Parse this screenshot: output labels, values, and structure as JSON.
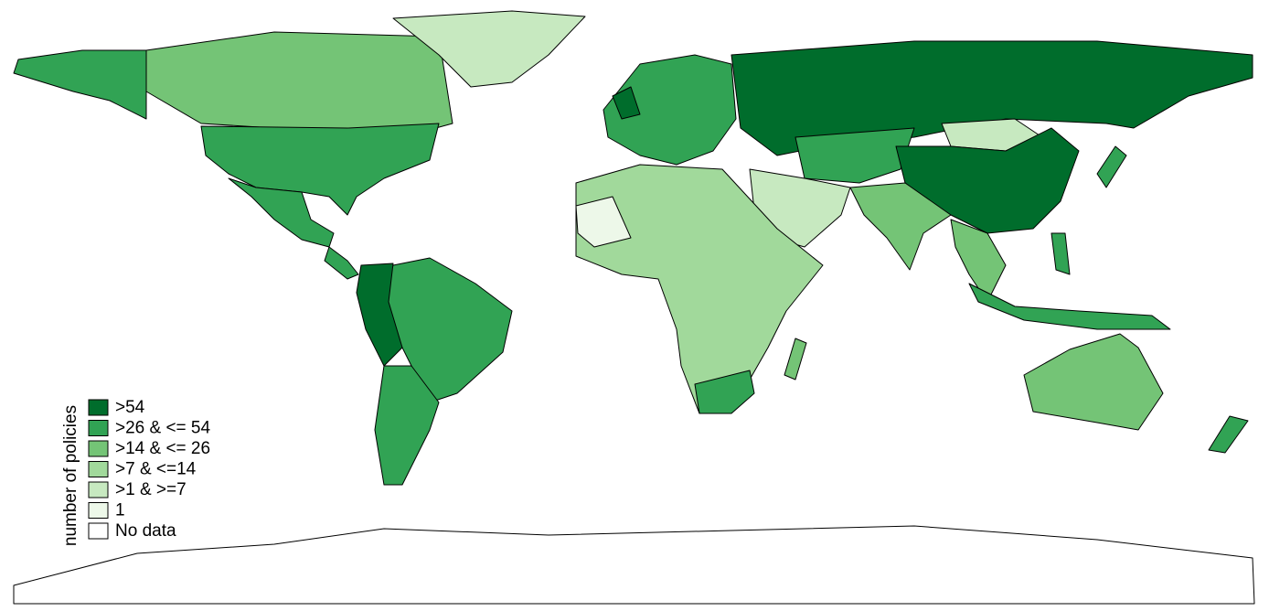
{
  "legend": {
    "title": "number of policies",
    "items": [
      {
        "label": ">54",
        "color": "#006d2c"
      },
      {
        "label": ">26 & <= 54",
        "color": "#31a354"
      },
      {
        "label": ">14 & <= 26",
        "color": "#74c476"
      },
      {
        "label": ">7 & <=14",
        "color": "#a1d99b"
      },
      {
        "label": ">1 & >=7",
        "color": "#c7e9c0"
      },
      {
        "label": "1",
        "color": "#edf8e9"
      },
      {
        "label": "No data",
        "color": "#ffffff"
      }
    ]
  }
}
